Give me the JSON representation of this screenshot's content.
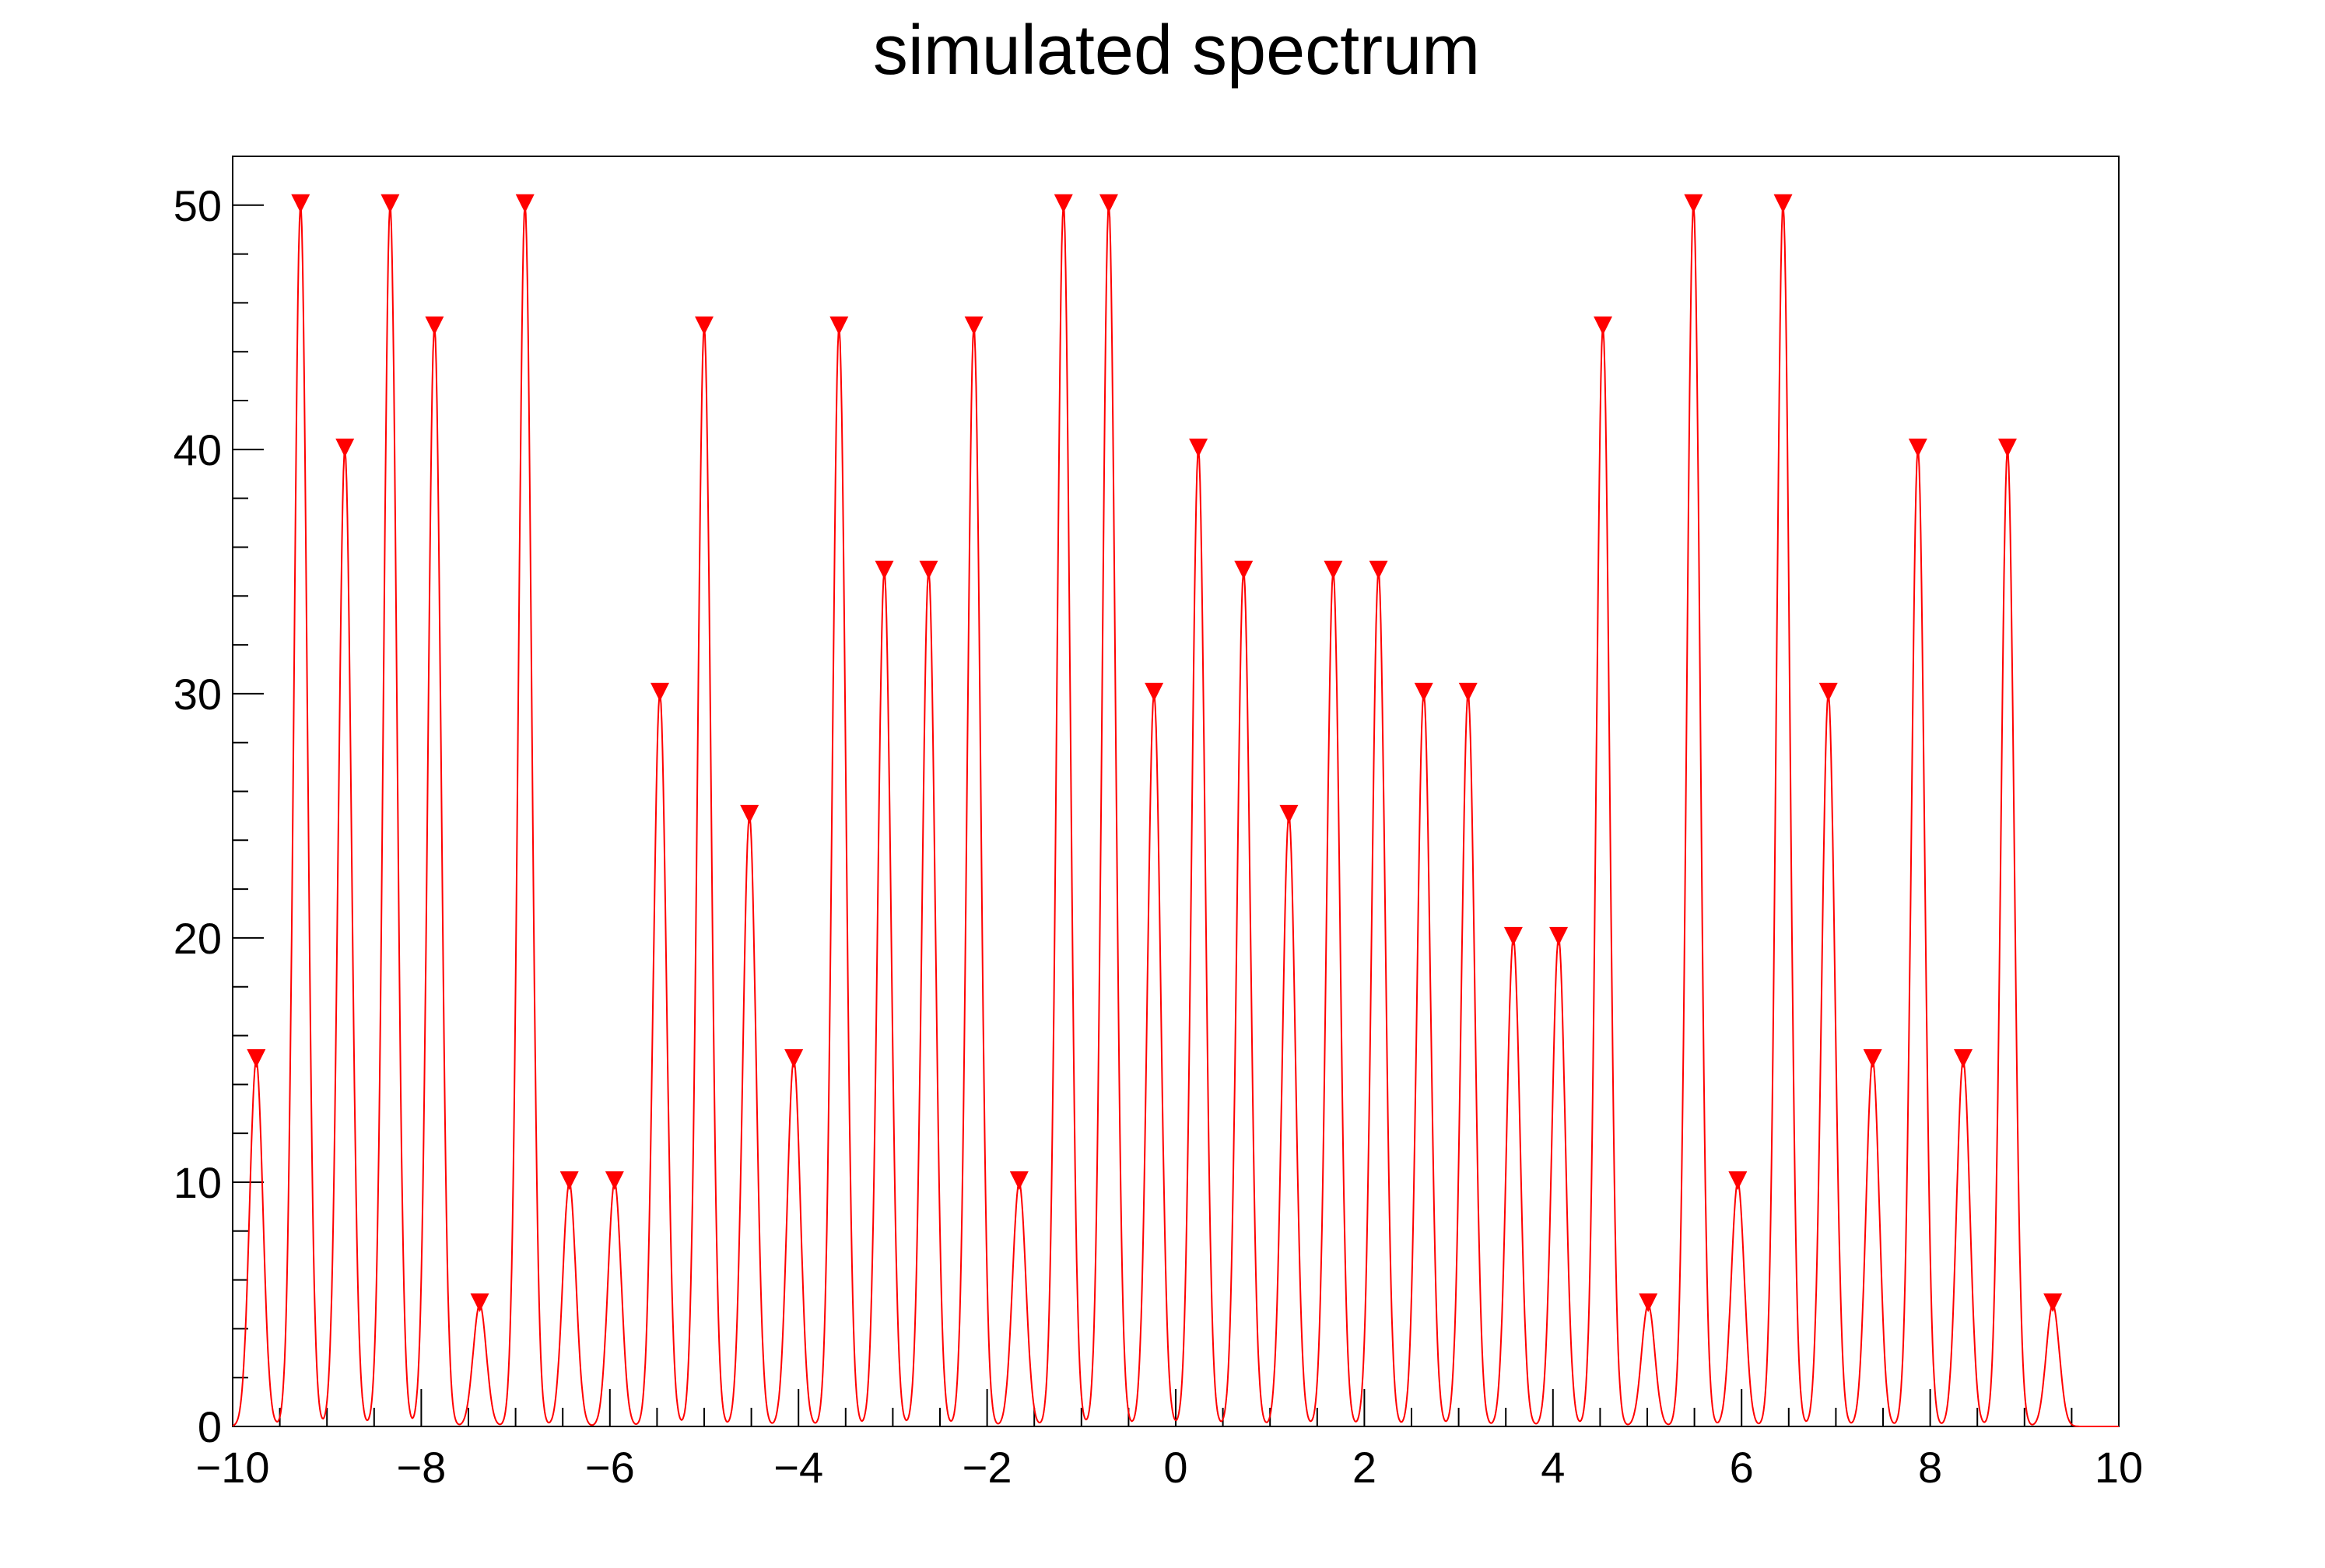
{
  "chart_data": {
    "type": "line",
    "title": "simulated spectrum",
    "xlabel": "",
    "ylabel": "",
    "xlim": [
      -10,
      10
    ],
    "ylim": [
      0,
      52
    ],
    "x_ticks": [
      "−10",
      "−8",
      "−6",
      "−4",
      "−2",
      "0",
      "2",
      "4",
      "6",
      "8",
      "10"
    ],
    "y_ticks": [
      "0",
      "10",
      "20",
      "30",
      "40",
      "50"
    ],
    "grid": false,
    "legend": "none",
    "colors": {
      "line": "#ff0000",
      "marker": "#ff0000",
      "frame": "#000000"
    },
    "peak_sigma": 0.07,
    "series": [
      {
        "marker": "down-triangle",
        "points": [
          {
            "x": -9.75,
            "y": 15
          },
          {
            "x": -9.28,
            "y": 50
          },
          {
            "x": -8.81,
            "y": 40
          },
          {
            "x": -8.33,
            "y": 50
          },
          {
            "x": -7.86,
            "y": 45
          },
          {
            "x": -7.38,
            "y": 5
          },
          {
            "x": -6.9,
            "y": 50
          },
          {
            "x": -6.43,
            "y": 10
          },
          {
            "x": -5.95,
            "y": 10
          },
          {
            "x": -5.47,
            "y": 30
          },
          {
            "x": -5.0,
            "y": 45
          },
          {
            "x": -4.52,
            "y": 25
          },
          {
            "x": -4.05,
            "y": 15
          },
          {
            "x": -3.57,
            "y": 45
          },
          {
            "x": -3.09,
            "y": 35
          },
          {
            "x": -2.62,
            "y": 35
          },
          {
            "x": -2.14,
            "y": 45
          },
          {
            "x": -1.66,
            "y": 10
          },
          {
            "x": -1.19,
            "y": 50
          },
          {
            "x": -0.71,
            "y": 50
          },
          {
            "x": -0.23,
            "y": 30
          },
          {
            "x": 0.24,
            "y": 40
          },
          {
            "x": 0.72,
            "y": 35
          },
          {
            "x": 1.2,
            "y": 25
          },
          {
            "x": 1.67,
            "y": 35
          },
          {
            "x": 2.15,
            "y": 35
          },
          {
            "x": 2.63,
            "y": 30
          },
          {
            "x": 3.1,
            "y": 30
          },
          {
            "x": 3.58,
            "y": 20
          },
          {
            "x": 4.06,
            "y": 20
          },
          {
            "x": 4.53,
            "y": 45
          },
          {
            "x": 5.01,
            "y": 5
          },
          {
            "x": 5.49,
            "y": 50
          },
          {
            "x": 5.96,
            "y": 10
          },
          {
            "x": 6.44,
            "y": 50
          },
          {
            "x": 6.92,
            "y": 30
          },
          {
            "x": 7.39,
            "y": 15
          },
          {
            "x": 7.87,
            "y": 40
          },
          {
            "x": 8.35,
            "y": 15
          },
          {
            "x": 8.82,
            "y": 40
          },
          {
            "x": 9.3,
            "y": 5
          }
        ]
      }
    ]
  }
}
